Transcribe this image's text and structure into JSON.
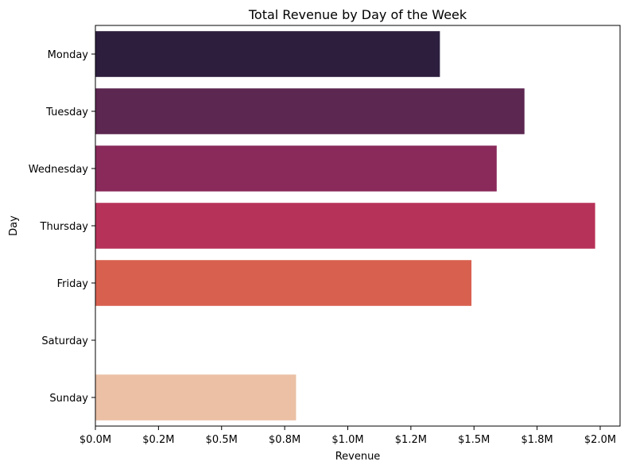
{
  "chart_data": {
    "type": "bar",
    "orientation": "horizontal",
    "title": "Total Revenue by Day of the Week",
    "xlabel": "Revenue",
    "ylabel": "Day",
    "xlim": [
      0,
      2000000
    ],
    "x_ticks": [
      0,
      250000,
      500000,
      750000,
      1000000,
      1250000,
      1500000,
      1750000,
      2000000
    ],
    "x_tick_labels": [
      "$0.0M",
      "$0.2M",
      "$0.5M",
      "$0.8M",
      "$1.0M",
      "$1.2M",
      "$1.5M",
      "$1.8M",
      "$2.0M"
    ],
    "grid": false,
    "categories": [
      "Monday",
      "Tuesday",
      "Wednesday",
      "Thursday",
      "Friday",
      "Saturday",
      "Sunday"
    ],
    "values": [
      1365000,
      1700000,
      1590000,
      1980000,
      1490000,
      0,
      795000
    ],
    "colors": [
      "#2d1e3e",
      "#5c2751",
      "#8a2a5b",
      "#b73259",
      "#d8604f",
      "#f09c7b",
      "#ebc0a4"
    ]
  }
}
